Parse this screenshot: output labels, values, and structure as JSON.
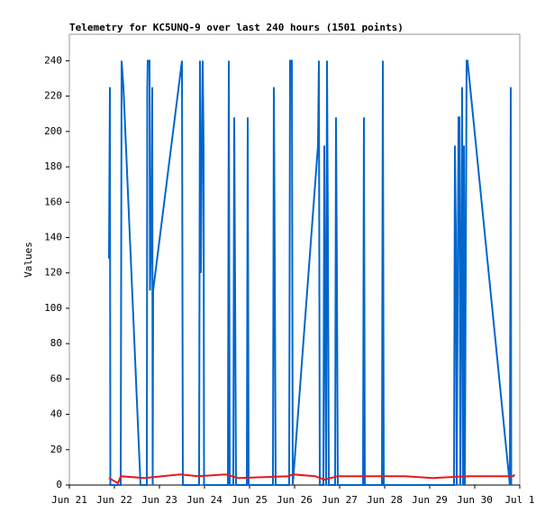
{
  "chart_data": {
    "type": "line",
    "title": "Telemetry for KC5UNQ-9 over last 240 hours (1501 points)",
    "y_label": "Values",
    "xlim": [
      0,
      10
    ],
    "xticks": [
      {
        "value": 0,
        "label": "Jun 21"
      },
      {
        "value": 1,
        "label": "Jun 22"
      },
      {
        "value": 2,
        "label": "Jun 23"
      },
      {
        "value": 3,
        "label": "Jun 24"
      },
      {
        "value": 4,
        "label": "Jun 25"
      },
      {
        "value": 5,
        "label": "Jun 26"
      },
      {
        "value": 6,
        "label": "Jun 27"
      },
      {
        "value": 7,
        "label": "Jun 28"
      },
      {
        "value": 8,
        "label": "Jun 29"
      },
      {
        "value": 9,
        "label": "Jun 30"
      },
      {
        "value": 10,
        "label": "Jul 1"
      }
    ],
    "ylim": [
      0,
      255
    ],
    "yticks": [
      0,
      20,
      40,
      60,
      80,
      100,
      120,
      140,
      160,
      180,
      200,
      220,
      240
    ],
    "grid": false,
    "series": [
      {
        "color": "#0066cc",
        "x": [
          0.88,
          0.9,
          0.91,
          1.14,
          1.16,
          1.2,
          1.58,
          1.72,
          1.73,
          1.74,
          1.78,
          1.79,
          1.82,
          1.84,
          1.85,
          1.86,
          2.5,
          2.52,
          2.88,
          2.9,
          2.92,
          2.96,
          2.98,
          2.99,
          3.52,
          3.54,
          3.56,
          3.64,
          3.66,
          3.68,
          3.7,
          3.94,
          3.96,
          3.98,
          4.52,
          4.54,
          4.56,
          4.58,
          4.88,
          4.9,
          4.94,
          4.96,
          5.52,
          5.54,
          5.56,
          5.64,
          5.66,
          5.7,
          5.72,
          5.74,
          5.76,
          5.9,
          5.92,
          5.94,
          5.96,
          6.52,
          6.54,
          6.56,
          6.94,
          6.96,
          6.98,
          8.54,
          8.56,
          8.58,
          8.6,
          8.64,
          8.66,
          8.68,
          8.72,
          8.74,
          8.76,
          8.78,
          8.82,
          8.84,
          9.78,
          9.8,
          9.81
        ],
        "values": [
          128,
          225,
          0,
          0,
          240,
          225,
          0,
          0,
          225,
          240,
          240,
          110,
          145,
          225,
          0,
          110,
          240,
          0,
          0,
          240,
          120,
          240,
          192,
          0,
          0,
          240,
          0,
          0,
          208,
          110,
          0,
          0,
          208,
          0,
          0,
          225,
          128,
          0,
          0,
          240,
          240,
          0,
          192,
          240,
          0,
          0,
          192,
          0,
          240,
          145,
          0,
          0,
          208,
          120,
          0,
          0,
          208,
          0,
          0,
          240,
          0,
          0,
          192,
          145,
          0,
          208,
          208,
          0,
          225,
          0,
          192,
          0,
          240,
          240,
          0,
          225,
          0
        ]
      },
      {
        "color": "#e41a1c",
        "x": [
          0.88,
          1.08,
          1.14,
          1.66,
          2.46,
          2.86,
          3.46,
          3.76,
          4.86,
          4.96,
          5.46,
          5.66,
          5.96,
          7.46,
          8.06,
          8.86,
          9.86,
          9.88
        ],
        "values": [
          4,
          1,
          5,
          4,
          6,
          5,
          6,
          4,
          5,
          6,
          5,
          3,
          5,
          5,
          4,
          5,
          5,
          6
        ]
      }
    ]
  }
}
